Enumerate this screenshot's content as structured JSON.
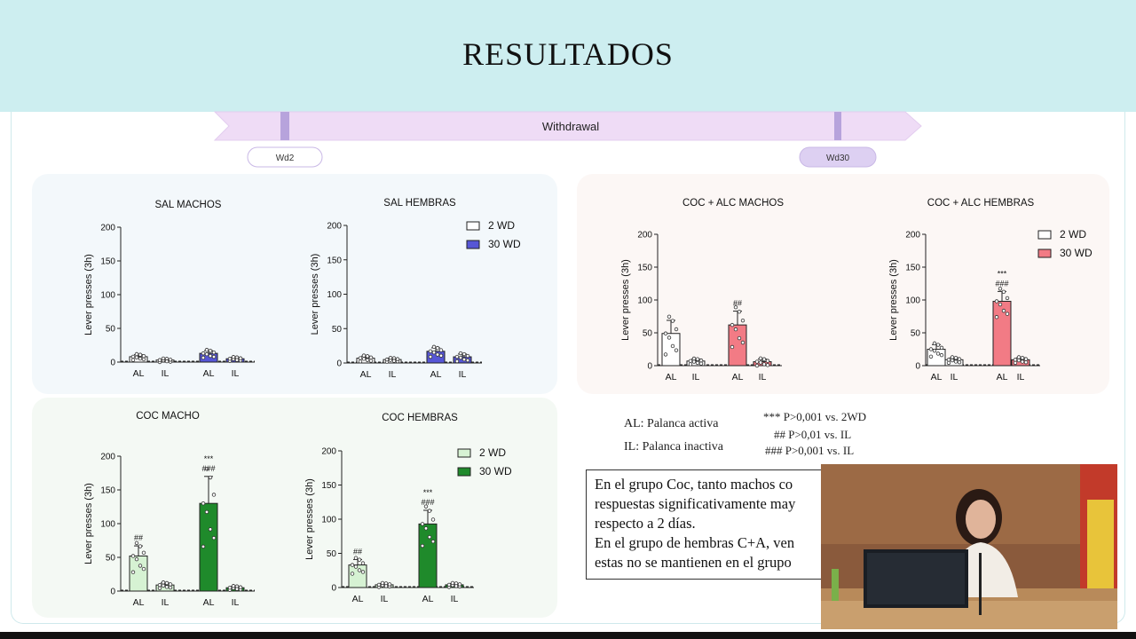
{
  "slide": {
    "title": "RESULTADOS",
    "timeline": {
      "label": "Withdrawal",
      "start_tag": "Wd2",
      "end_tag": "Wd30"
    },
    "abbreviations": [
      "AL: Palanca activa",
      "IL: Palanca inactiva"
    ],
    "significance": [
      "***  P>0,001 vs. 2WD",
      "## P>0,01 vs. IL",
      "###  P>0,001 vs. IL"
    ],
    "conclusion_lines": [
      "En el grupo Coc, tanto machos co",
      "respuestas significativamente may",
      "respecto a 2 días.",
      "En el grupo de hembras C+A, ven",
      "estas no se mantienen en el grupo"
    ]
  },
  "colors": {
    "header_bg": "#cdeef0",
    "timeline_fill": "#efdcf6",
    "timeline_marker": "#b7a3dc",
    "sal_30wd": "#5656d6",
    "cocalc_30wd": "#f27b85",
    "coc_2wd": "#d6f2d3",
    "coc_30wd": "#1f8a2b",
    "wd_2wd": "#ffffff"
  },
  "chart_data": [
    {
      "type": "bar",
      "title": "SAL MACHOS",
      "ylabel": "Lever presses (3h)",
      "ylim": [
        0,
        200
      ],
      "yticks": [
        0,
        50,
        100,
        150,
        200
      ],
      "categories": [
        "AL",
        "IL",
        "AL",
        "IL"
      ],
      "series": [
        {
          "name": "2 WD",
          "values": [
            8,
            3,
            null,
            null
          ],
          "errors": [
            3,
            1,
            null,
            null
          ]
        },
        {
          "name": "30 WD",
          "values": [
            null,
            null,
            13,
            5
          ],
          "errors": [
            null,
            null,
            4,
            2
          ]
        }
      ],
      "annotations": []
    },
    {
      "type": "bar",
      "title": "SAL HEMBRAS",
      "ylabel": "Lever presses (3h)",
      "ylim": [
        0,
        200
      ],
      "yticks": [
        0,
        50,
        100,
        150,
        200
      ],
      "categories": [
        "AL",
        "IL",
        "AL",
        "IL"
      ],
      "legend": [
        "2 WD",
        "30 WD"
      ],
      "series": [
        {
          "name": "2 WD",
          "values": [
            7,
            5,
            null,
            null
          ],
          "errors": [
            3,
            2,
            null,
            null
          ]
        },
        {
          "name": "30 WD",
          "values": [
            null,
            null,
            17,
            9
          ],
          "errors": [
            null,
            null,
            5,
            4
          ]
        }
      ],
      "annotations": []
    },
    {
      "type": "bar",
      "title": "COC + ALC MACHOS",
      "ylabel": "Lever presses (3h)",
      "ylim": [
        0,
        200
      ],
      "yticks": [
        0,
        50,
        100,
        150,
        200
      ],
      "categories": [
        "AL",
        "IL",
        "AL",
        "IL"
      ],
      "series": [
        {
          "name": "2 WD",
          "values": [
            49,
            7,
            null,
            null
          ],
          "errors": [
            20,
            3,
            null,
            null
          ]
        },
        {
          "name": "30 WD",
          "values": [
            null,
            null,
            62,
            6
          ],
          "errors": [
            null,
            null,
            21,
            4
          ]
        }
      ],
      "annotations": [
        {
          "bar": 2,
          "text": [
            "##"
          ]
        }
      ]
    },
    {
      "type": "bar",
      "title": "COC + ALC HEMBRAS",
      "ylabel": "Lever presses (3h)",
      "ylim": [
        0,
        200
      ],
      "yticks": [
        0,
        50,
        100,
        150,
        200
      ],
      "categories": [
        "AL",
        "IL",
        "AL",
        "IL"
      ],
      "legend": [
        "2 WD",
        "30 WD"
      ],
      "series": [
        {
          "name": "2 WD",
          "values": [
            25,
            9,
            null,
            null
          ],
          "errors": [
            7,
            3,
            null,
            null
          ]
        },
        {
          "name": "30 WD",
          "values": [
            null,
            null,
            98,
            9
          ],
          "errors": [
            null,
            null,
            15,
            3
          ]
        }
      ],
      "annotations": [
        {
          "bar": 2,
          "text": [
            "***",
            "###"
          ]
        }
      ]
    },
    {
      "type": "bar",
      "title": "COC MACHO",
      "ylabel": "Lever presses (3h)",
      "ylim": [
        0,
        200
      ],
      "yticks": [
        0,
        50,
        100,
        150,
        200
      ],
      "categories": [
        "AL",
        "IL",
        "AL",
        "IL"
      ],
      "series": [
        {
          "name": "2 WD",
          "values": [
            52,
            9,
            null,
            null
          ],
          "errors": [
            15,
            3,
            null,
            null
          ]
        },
        {
          "name": "30 WD",
          "values": [
            null,
            null,
            130,
            5
          ],
          "errors": [
            null,
            null,
            40,
            2
          ]
        }
      ],
      "annotations": [
        {
          "bar": 0,
          "text": [
            "##"
          ]
        },
        {
          "bar": 2,
          "text": [
            "***",
            "###"
          ]
        }
      ]
    },
    {
      "type": "bar",
      "title": "COC HEMBRAS",
      "ylabel": "Lever presses (3h)",
      "ylim": [
        0,
        200
      ],
      "yticks": [
        0,
        50,
        100,
        150,
        200
      ],
      "categories": [
        "AL",
        "IL",
        "AL",
        "IL"
      ],
      "legend": [
        "2 WD",
        "30 WD"
      ],
      "series": [
        {
          "name": "2 WD",
          "values": [
            33,
            4,
            null,
            null
          ],
          "errors": [
            8,
            2,
            null,
            null
          ]
        },
        {
          "name": "30 WD",
          "values": [
            null,
            null,
            93,
            4
          ],
          "errors": [
            null,
            null,
            20,
            2
          ]
        }
      ],
      "annotations": [
        {
          "bar": 0,
          "text": [
            "##"
          ]
        },
        {
          "bar": 2,
          "text": [
            "***",
            "###"
          ]
        }
      ]
    }
  ]
}
